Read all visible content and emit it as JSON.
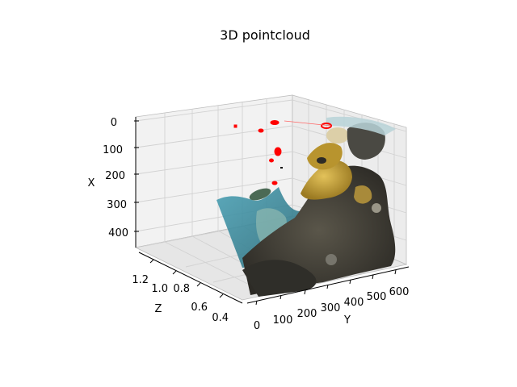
{
  "chart_data": {
    "type": "scatter",
    "projection": "3d",
    "title": "3D pointcloud",
    "xlabel": "X",
    "ylabel": "Y",
    "zlabel": "Z",
    "x_ticks": [
      "0",
      "100",
      "200",
      "300",
      "400"
    ],
    "y_ticks": [
      "0",
      "100",
      "200",
      "300",
      "400",
      "500",
      "600"
    ],
    "z_ticks": [
      "0.4",
      "0.6",
      "0.8",
      "1.0",
      "1.2"
    ],
    "xlim": [
      0,
      480
    ],
    "ylim": [
      0,
      640
    ],
    "zlim": [
      0.35,
      1.3
    ],
    "grid": true,
    "colors": {
      "pane": "#f2f2f2",
      "pane_side": "#ececec",
      "grid": "#d0d0d0",
      "highlight": "#ff0000",
      "reef_dark": "#3b3a33",
      "reef_yellow": "#c9a233",
      "water_teal": "#3f8ea0"
    }
  }
}
